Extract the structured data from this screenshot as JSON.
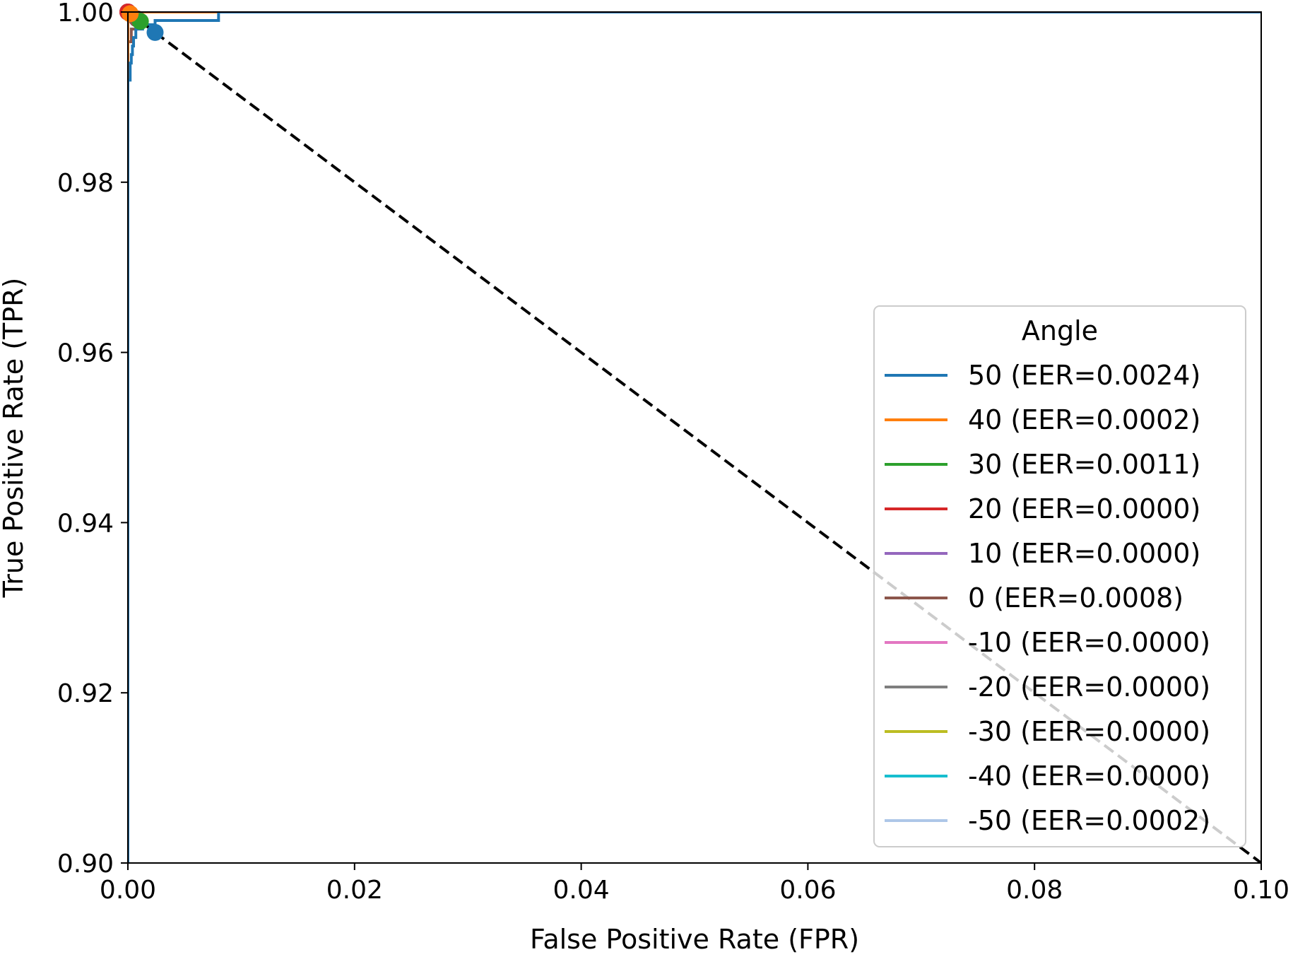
{
  "chart_data": {
    "type": "line",
    "title": "",
    "xlabel": "False Positive Rate (FPR)",
    "ylabel": "True Positive Rate (TPR)",
    "xlim": [
      0.0,
      0.1
    ],
    "ylim": [
      0.9,
      1.0
    ],
    "x_ticks": [
      0.0,
      0.02,
      0.04,
      0.06,
      0.08,
      0.1
    ],
    "x_tick_labels": [
      "0.00",
      "0.02",
      "0.04",
      "0.06",
      "0.08",
      "0.10"
    ],
    "y_ticks": [
      0.9,
      0.92,
      0.94,
      0.96,
      0.98,
      1.0
    ],
    "y_tick_labels": [
      "0.90",
      "0.92",
      "0.94",
      "0.96",
      "0.98",
      "1.00"
    ],
    "grid": false,
    "legend": {
      "title": "Angle",
      "placement": "center-right",
      "entries": [
        "50 (EER=0.0024)",
        "40 (EER=0.0002)",
        "30 (EER=0.0011)",
        "20 (EER=0.0000)",
        "10 (EER=0.0000)",
        "0 (EER=0.0008)",
        "-10 (EER=0.0000)",
        "-20 (EER=0.0000)",
        "-30 (EER=0.0000)",
        "-40 (EER=0.0000)",
        "-50 (EER=0.0002)"
      ]
    },
    "reference_line": {
      "style": "dashed",
      "color": "#000000",
      "points": [
        [
          0.0,
          1.0
        ],
        [
          0.1,
          0.9
        ]
      ]
    },
    "series": [
      {
        "name": "50 (EER=0.0024)",
        "color": "#1f77b4",
        "x": [
          0.0,
          0.0,
          0.0002,
          0.0002,
          0.0003,
          0.0003,
          0.0004,
          0.0004,
          0.0005,
          0.0005,
          0.0007,
          0.0007,
          0.0013,
          0.0013,
          0.0024,
          0.0024,
          0.008,
          0.008,
          0.1
        ],
        "y": [
          0.9,
          0.992,
          0.992,
          0.994,
          0.994,
          0.995,
          0.995,
          0.996,
          0.996,
          0.997,
          0.997,
          0.998,
          0.998,
          0.9985,
          0.9985,
          0.999,
          0.999,
          1.0,
          1.0
        ],
        "eer_point": [
          0.0024,
          0.9976
        ]
      },
      {
        "name": "40 (EER=0.0002)",
        "color": "#ff7f0e",
        "x": [
          0.0,
          0.0,
          0.0002,
          0.1
        ],
        "y": [
          0.9,
          0.9998,
          1.0,
          1.0
        ],
        "eer_point": [
          0.0002,
          0.9998
        ]
      },
      {
        "name": "30 (EER=0.0011)",
        "color": "#2ca02c",
        "x": [
          0.0,
          0.0,
          0.0011,
          0.0011,
          0.1
        ],
        "y": [
          0.9,
          0.9989,
          0.9989,
          1.0,
          1.0
        ],
        "eer_point": [
          0.0011,
          0.9989
        ]
      },
      {
        "name": "20 (EER=0.0000)",
        "color": "#d62728",
        "x": [
          0.0,
          0.0,
          0.1
        ],
        "y": [
          0.9,
          1.0,
          1.0
        ],
        "eer_point": [
          0.0,
          1.0
        ]
      },
      {
        "name": "10 (EER=0.0000)",
        "color": "#9467bd",
        "x": [
          0.0,
          0.0,
          0.1
        ],
        "y": [
          0.9,
          1.0,
          1.0
        ],
        "eer_point": [
          0.0,
          1.0
        ]
      },
      {
        "name": "0 (EER=0.0008)",
        "color": "#8c564b",
        "x": [
          0.0,
          0.0,
          0.0003,
          0.0003,
          0.0008,
          0.0008,
          0.1
        ],
        "y": [
          0.9,
          0.9965,
          0.9965,
          0.998,
          0.998,
          1.0,
          1.0
        ],
        "eer_point": [
          0.0008,
          0.9992
        ]
      },
      {
        "name": "-10 (EER=0.0000)",
        "color": "#e377c2",
        "x": [
          0.0,
          0.0,
          0.1
        ],
        "y": [
          0.9,
          1.0,
          1.0
        ],
        "eer_point": [
          0.0,
          1.0
        ]
      },
      {
        "name": "-20 (EER=0.0000)",
        "color": "#7f7f7f",
        "x": [
          0.0,
          0.0,
          0.1
        ],
        "y": [
          0.9,
          1.0,
          1.0
        ],
        "eer_point": [
          0.0,
          1.0
        ]
      },
      {
        "name": "-30 (EER=0.0000)",
        "color": "#bcbd22",
        "x": [
          0.0,
          0.0,
          0.1
        ],
        "y": [
          0.9,
          1.0,
          1.0
        ],
        "eer_point": [
          0.0,
          1.0
        ]
      },
      {
        "name": "-40 (EER=0.0000)",
        "color": "#17becf",
        "x": [
          0.0,
          0.0,
          0.1
        ],
        "y": [
          0.9,
          1.0,
          1.0
        ],
        "eer_point": [
          0.0,
          1.0
        ]
      },
      {
        "name": "-50 (EER=0.0002)",
        "color": "#aec7e8",
        "x": [
          0.0,
          0.0,
          0.0002,
          0.1
        ],
        "y": [
          0.9,
          0.9998,
          1.0,
          1.0
        ],
        "eer_point": [
          0.0002,
          0.9998
        ]
      }
    ]
  }
}
